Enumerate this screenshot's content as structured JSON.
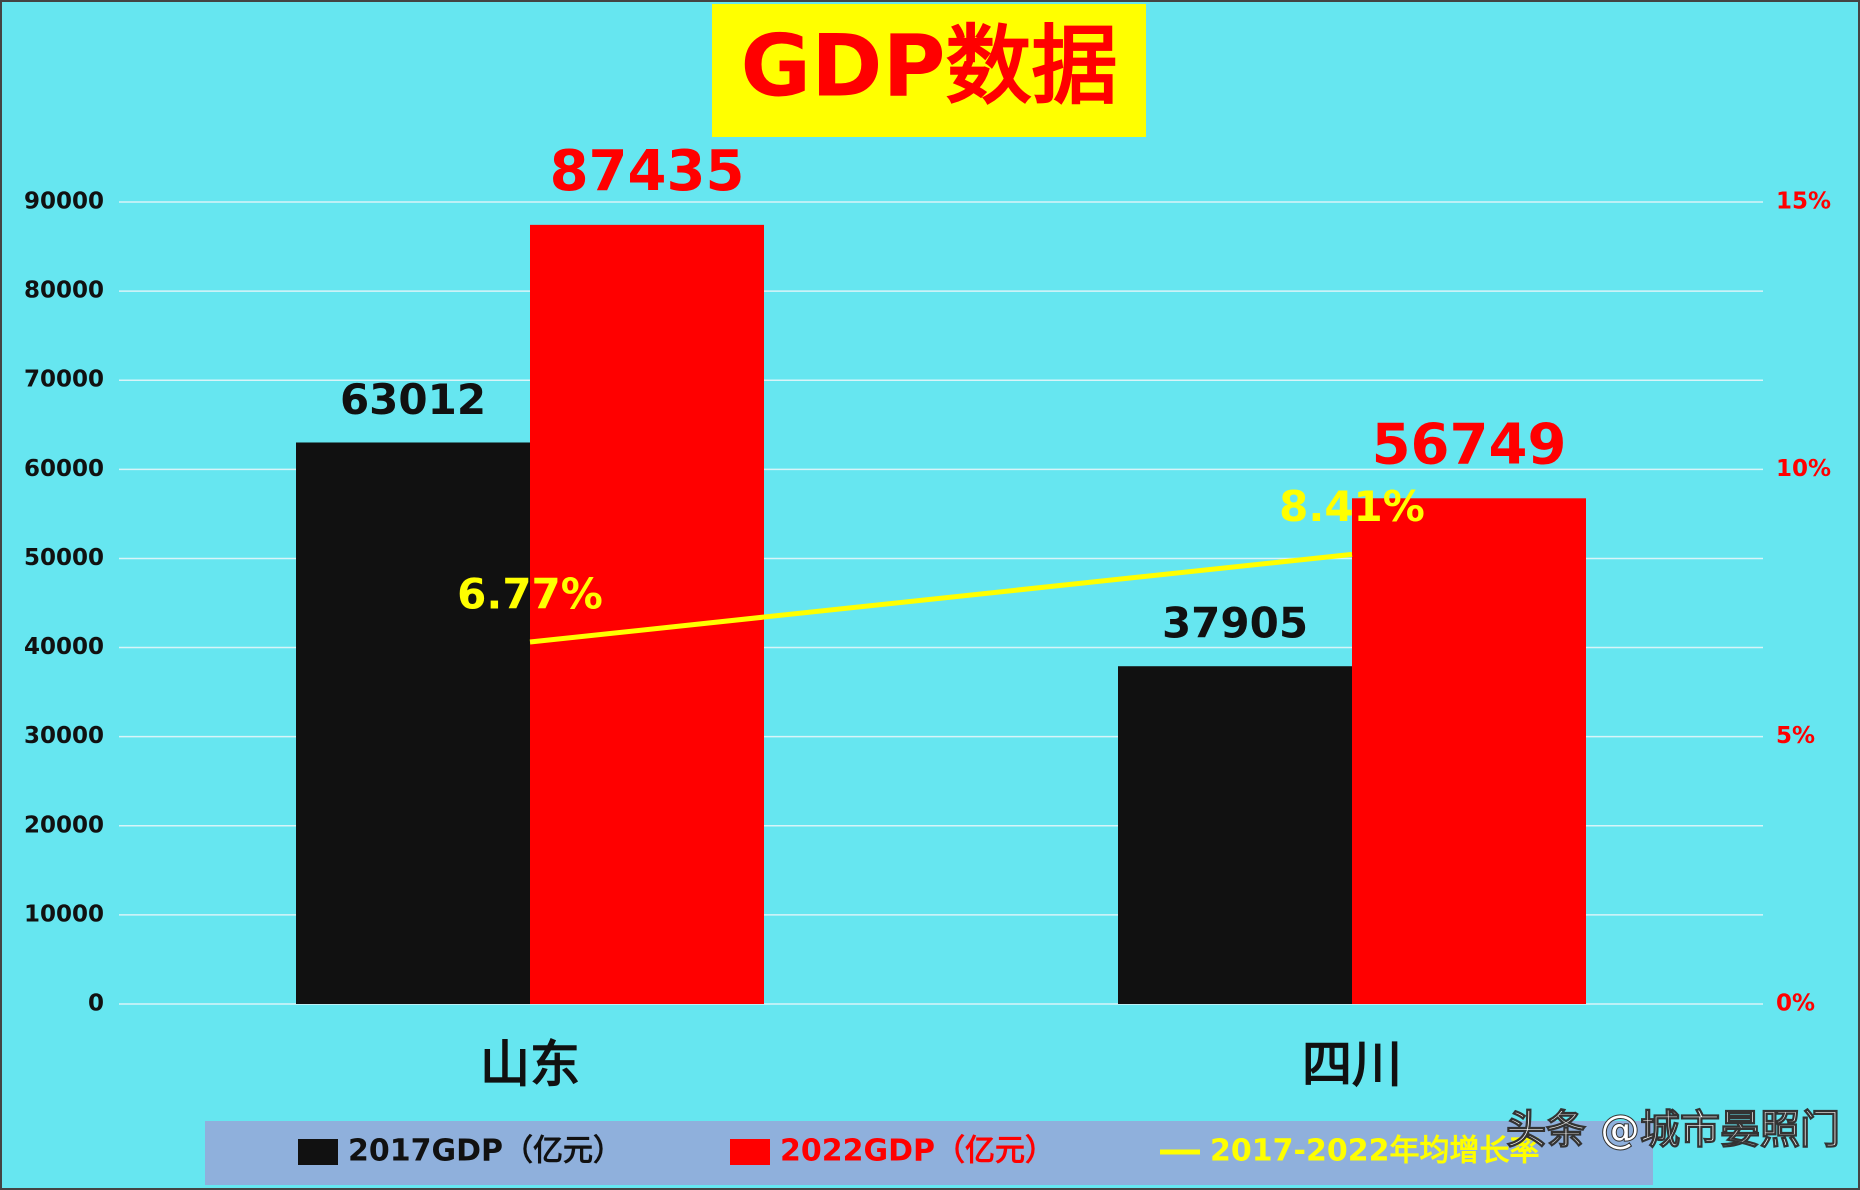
{
  "chart_data": {
    "type": "bar",
    "title": "GDP数据",
    "categories": [
      "山东",
      "四川"
    ],
    "series": [
      {
        "name": "2017GDP（亿元）",
        "color": "#111111",
        "values": [
          63012,
          37905
        ]
      },
      {
        "name": "2022GDP（亿元）",
        "color": "#ff0000",
        "values": [
          87435,
          56749
        ]
      },
      {
        "name": "2017-2022年均增长率",
        "color": "#ffff00",
        "type": "line",
        "axis": "y2",
        "values": [
          6.77,
          8.41
        ],
        "value_labels": [
          "6.77%",
          "8.41%"
        ]
      }
    ],
    "ylim": [
      0,
      90000
    ],
    "yticks": [
      0,
      10000,
      20000,
      30000,
      40000,
      50000,
      60000,
      70000,
      80000,
      90000
    ],
    "y2lim": [
      0,
      15
    ],
    "y2ticks": [
      {
        "value": 0,
        "label": "0%"
      },
      {
        "value": 5,
        "label": "5%"
      },
      {
        "value": 10,
        "label": "10%"
      },
      {
        "value": 15,
        "label": "15%"
      }
    ],
    "y2color": "#ff0000",
    "grid": true,
    "legend": "bottom"
  },
  "watermark": "头条 @城市晏照门"
}
